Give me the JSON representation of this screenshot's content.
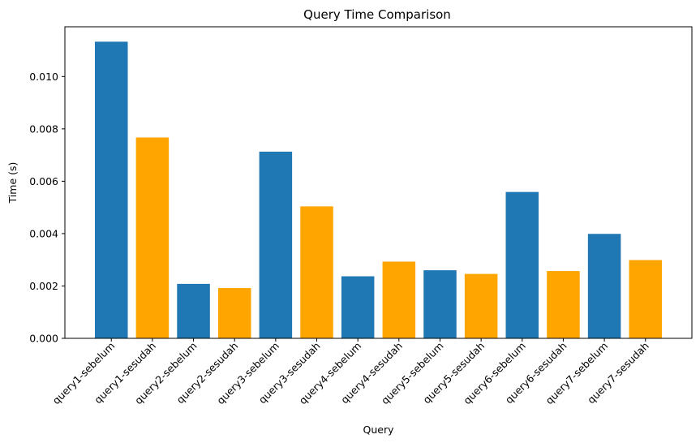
{
  "chart_data": {
    "type": "bar",
    "title": "Query Time Comparison",
    "xlabel": "Query",
    "ylabel": "Time (s)",
    "categories": [
      "query1-sebelum",
      "query1-sesudah",
      "query2-sebelum",
      "query2-sesudah",
      "query3-sebelum",
      "query3-sesudah",
      "query4-sebelum",
      "query4-sesudah",
      "query5-sebelum",
      "query5-sesudah",
      "query6-sebelum",
      "query6-sesudah",
      "query7-sebelum",
      "query7-sesudah"
    ],
    "values": [
      0.01133,
      0.00767,
      0.00208,
      0.00192,
      0.00713,
      0.00504,
      0.00237,
      0.00293,
      0.0026,
      0.00246,
      0.00559,
      0.00257,
      0.00399,
      0.00299
    ],
    "bar_colors": [
      "#1f77b4",
      "#ffa500",
      "#1f77b4",
      "#ffa500",
      "#1f77b4",
      "#ffa500",
      "#1f77b4",
      "#ffa500",
      "#1f77b4",
      "#ffa500",
      "#1f77b4",
      "#ffa500",
      "#1f77b4",
      "#ffa500"
    ],
    "yticks": [
      "0.000",
      "0.002",
      "0.004",
      "0.006",
      "0.008",
      "0.010"
    ],
    "ylim": [
      0,
      0.0119
    ],
    "grid": false,
    "legend": "none"
  }
}
